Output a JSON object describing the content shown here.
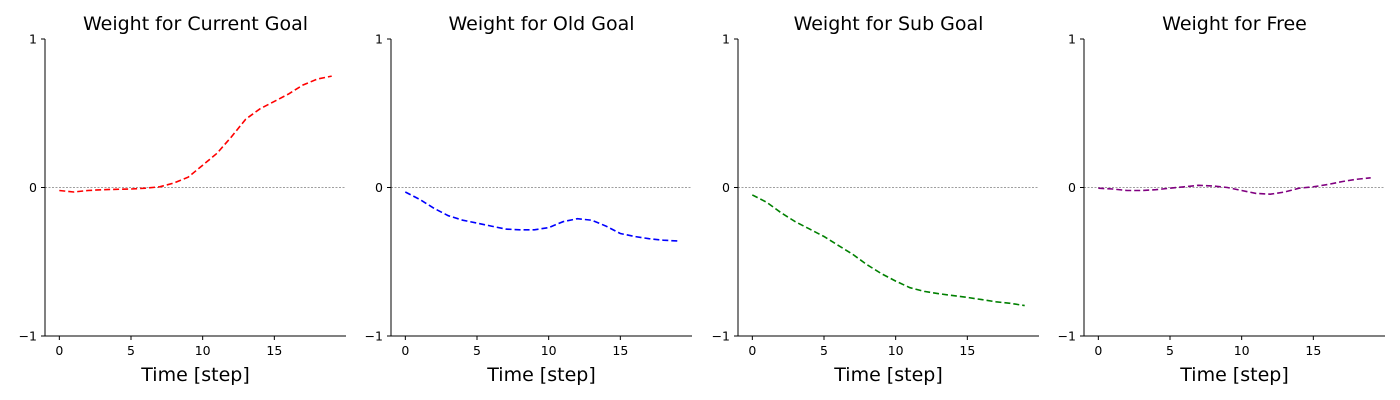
{
  "chart_data": [
    {
      "type": "line",
      "title": "Weight for Current Goal",
      "xlabel": "Time [step]",
      "ylabel": "",
      "xlim": [
        -1,
        20
      ],
      "ylim": [
        -1,
        1
      ],
      "xticks": [
        "0",
        "5",
        "10",
        "15"
      ],
      "yticks": [
        "1",
        "0",
        "−1"
      ],
      "reference_line_y": 0,
      "series": [
        {
          "color": "#ff0000",
          "style": "dashed",
          "x": [
            0,
            1,
            2,
            3,
            4,
            5,
            6,
            7,
            8,
            9,
            10,
            11,
            12,
            13,
            14,
            15,
            16,
            17,
            18,
            19
          ],
          "y": [
            -0.02,
            -0.03,
            -0.02,
            -0.015,
            -0.012,
            -0.01,
            -0.005,
            0.005,
            0.03,
            0.07,
            0.15,
            0.23,
            0.34,
            0.46,
            0.53,
            0.58,
            0.63,
            0.69,
            0.73,
            0.75
          ]
        }
      ]
    },
    {
      "type": "line",
      "title": "Weight for Old Goal",
      "xlabel": "Time [step]",
      "ylabel": "",
      "xlim": [
        -1,
        20
      ],
      "ylim": [
        -1,
        1
      ],
      "xticks": [
        "0",
        "5",
        "10",
        "15"
      ],
      "yticks": [
        "1",
        "0",
        "−1"
      ],
      "reference_line_y": 0,
      "series": [
        {
          "color": "#0000ff",
          "style": "dashed",
          "x": [
            0,
            1,
            2,
            3,
            4,
            5,
            6,
            7,
            8,
            9,
            10,
            11,
            12,
            13,
            14,
            15,
            16,
            17,
            18,
            19
          ],
          "y": [
            -0.03,
            -0.08,
            -0.14,
            -0.19,
            -0.22,
            -0.24,
            -0.26,
            -0.28,
            -0.285,
            -0.285,
            -0.27,
            -0.23,
            -0.21,
            -0.22,
            -0.26,
            -0.31,
            -0.33,
            -0.345,
            -0.355,
            -0.36
          ]
        }
      ]
    },
    {
      "type": "line",
      "title": "Weight for Sub Goal",
      "xlabel": "Time [step]",
      "ylabel": "",
      "xlim": [
        -1,
        20
      ],
      "ylim": [
        -1,
        1
      ],
      "xticks": [
        "0",
        "5",
        "10",
        "15"
      ],
      "yticks": [
        "1",
        "0",
        "−1"
      ],
      "reference_line_y": 0,
      "series": [
        {
          "color": "#008000",
          "style": "dashed",
          "x": [
            0,
            1,
            2,
            3,
            4,
            5,
            6,
            7,
            8,
            9,
            10,
            11,
            12,
            13,
            14,
            15,
            16,
            17,
            18,
            19
          ],
          "y": [
            -0.05,
            -0.1,
            -0.17,
            -0.23,
            -0.28,
            -0.33,
            -0.39,
            -0.45,
            -0.52,
            -0.58,
            -0.63,
            -0.675,
            -0.7,
            -0.715,
            -0.728,
            -0.74,
            -0.755,
            -0.77,
            -0.78,
            -0.795
          ]
        }
      ]
    },
    {
      "type": "line",
      "title": "Weight for Free",
      "xlabel": "Time [step]",
      "ylabel": "",
      "xlim": [
        -1,
        20
      ],
      "ylim": [
        -1,
        1
      ],
      "xticks": [
        "0",
        "5",
        "10",
        "15"
      ],
      "yticks": [
        "1",
        "0",
        "−1"
      ],
      "reference_line_y": 0,
      "series": [
        {
          "color": "#800080",
          "style": "dashed",
          "x": [
            0,
            1,
            2,
            3,
            4,
            5,
            6,
            7,
            8,
            9,
            10,
            11,
            12,
            13,
            14,
            15,
            16,
            17,
            18,
            19
          ],
          "y": [
            -0.005,
            -0.01,
            -0.02,
            -0.02,
            -0.015,
            -0.005,
            0.005,
            0.015,
            0.01,
            0.0,
            -0.02,
            -0.04,
            -0.045,
            -0.03,
            -0.005,
            0.005,
            0.02,
            0.04,
            0.055,
            0.065
          ]
        }
      ]
    }
  ]
}
